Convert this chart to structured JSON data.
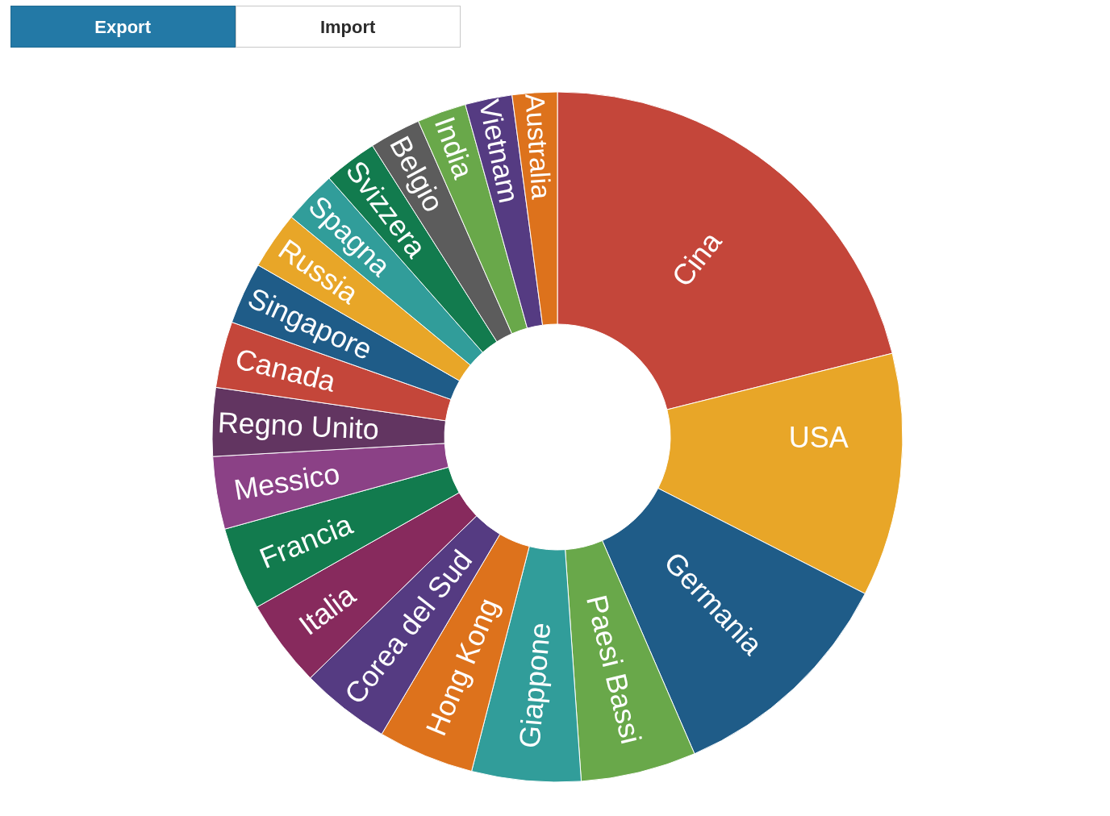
{
  "chart_data": {
    "type": "donut",
    "categories": [
      "Cina",
      "USA",
      "Germania",
      "Paesi Bassi",
      "Giappone",
      "Hong Kong",
      "Corea del Sud",
      "Italia",
      "Francia",
      "Messico",
      "Regno Unito",
      "Canada",
      "Singapore",
      "Russia",
      "Spagna",
      "Svizzera",
      "Belgio",
      "India",
      "Vietnam",
      "Australia"
    ],
    "values": [
      21.1,
      11.4,
      11.0,
      5.4,
      5.1,
      4.5,
      4.2,
      4.1,
      3.9,
      3.4,
      3.2,
      3.1,
      2.9,
      2.7,
      2.5,
      2.5,
      2.4,
      2.3,
      2.2,
      2.1
    ],
    "colors": [
      "#c4463a",
      "#e8a628",
      "#1f5c88",
      "#69a84a",
      "#319d9a",
      "#dd721c",
      "#553b82",
      "#872a5d",
      "#127b4e",
      "#8b4186",
      "#623561",
      "#c4463a",
      "#1f5c88",
      "#e8a628",
      "#319d9a",
      "#127b4e",
      "#5c5c5c",
      "#69a84a",
      "#553b82",
      "#dd721c"
    ],
    "annotations": [
      "Export",
      "Import"
    ]
  }
}
